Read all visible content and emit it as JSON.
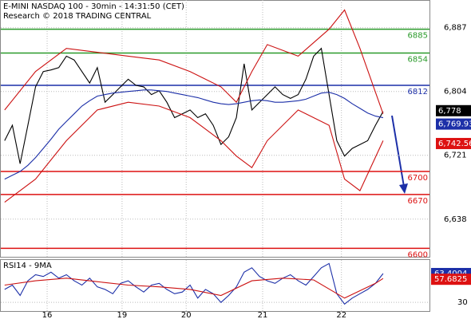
{
  "chart_data": {
    "type": "line",
    "title": "E-MINI NASDAQ 100 - 30min - 14:31:50 (CET)",
    "subtitle": "Research © 2018 TRADING CENTRAL",
    "x": [
      0,
      1,
      2,
      3,
      4,
      5,
      6,
      7,
      8,
      9,
      10,
      11,
      12,
      13,
      14,
      15,
      16,
      17,
      18,
      19,
      20,
      21,
      22,
      23,
      24,
      25,
      26,
      27,
      28,
      29,
      30,
      31,
      32,
      33,
      34,
      35,
      36,
      37,
      38,
      39,
      40,
      41,
      42,
      43,
      44,
      45,
      46,
      47,
      48,
      49
    ],
    "xlim": [
      -0.5,
      55
    ],
    "xticks": [
      {
        "value": 5.5,
        "label": "16"
      },
      {
        "value": 15.2,
        "label": "19"
      },
      {
        "value": 23.5,
        "label": "20"
      },
      {
        "value": 33.4,
        "label": "21"
      },
      {
        "value": 43.6,
        "label": "22"
      }
    ],
    "ylim": [
      6589,
      6923
    ],
    "yticks": [
      {
        "value": 6887,
        "label": "6,887"
      },
      {
        "value": 6804,
        "label": "6,804"
      },
      {
        "value": 6721,
        "label": "6,721"
      },
      {
        "value": 6638,
        "label": "6,638"
      }
    ],
    "series": [
      {
        "color": "#000000",
        "values": [
          6740,
          6760,
          6710,
          6760,
          6810,
          6830,
          6832,
          6835,
          6850,
          6845,
          6830,
          6815,
          6835,
          6790,
          6800,
          6810,
          6820,
          6812,
          6810,
          6800,
          6805,
          6790,
          6770,
          6775,
          6780,
          6770,
          6775,
          6760,
          6735,
          6745,
          6770,
          6840,
          6780,
          6790,
          6800,
          6810,
          6800,
          6795,
          6800,
          6820,
          6850,
          6860,
          6800,
          6740,
          6720,
          6730,
          6735,
          6740,
          6760,
          6778
        ]
      },
      {
        "color": "#1c2fa8",
        "values": [
          6690,
          6695,
          6700,
          6708,
          6718,
          6730,
          6742,
          6755,
          6765,
          6775,
          6785,
          6792,
          6798,
          6800,
          6802,
          6803,
          6804,
          6805,
          6806,
          6806,
          6805,
          6804,
          6802,
          6800,
          6798,
          6796,
          6793,
          6790,
          6788,
          6787,
          6788,
          6790,
          6792,
          6793,
          6792,
          6790,
          6790,
          6791,
          6792,
          6794,
          6798,
          6802,
          6803,
          6800,
          6795,
          6788,
          6782,
          6776,
          6772,
          6769.93
        ]
      },
      {
        "color": "#cc1111",
        "x": [
          0,
          4,
          8,
          12,
          16,
          20,
          24,
          28,
          30,
          32,
          34,
          38,
          42,
          44,
          46,
          49
        ],
        "values": [
          6780,
          6830,
          6860,
          6855,
          6850,
          6845,
          6830,
          6810,
          6790,
          6830,
          6865,
          6850,
          6885,
          6910,
          6860,
          6775
        ]
      },
      {
        "color": "#cc1111",
        "x": [
          0,
          4,
          8,
          12,
          16,
          20,
          24,
          28,
          30,
          32,
          34,
          38,
          42,
          44,
          46,
          49
        ],
        "values": [
          6660,
          6690,
          6740,
          6780,
          6790,
          6785,
          6770,
          6740,
          6720,
          6705,
          6740,
          6780,
          6760,
          6690,
          6675,
          6740
        ]
      }
    ],
    "levels": [
      {
        "value": 6885,
        "color": "#2a9a2a"
      },
      {
        "value": 6854,
        "color": "#2a9a2a"
      },
      {
        "value": 6812,
        "color": "#1c2fa8"
      },
      {
        "value": 6700,
        "color": "#dd1111"
      },
      {
        "value": 6670,
        "color": "#dd1111"
      },
      {
        "value": 6600,
        "color": "#dd1111"
      }
    ],
    "price_tags": [
      {
        "value": 6778,
        "label": "6,778",
        "color": "#000000"
      },
      {
        "value": 6769.93,
        "label": "6,769.93",
        "color": "#1c2fa8"
      },
      {
        "value": 6742.56,
        "label": "6,742.56",
        "color": "#dd1111"
      }
    ],
    "rsi": {
      "title": "RSI14 - 9MA",
      "ylim": [
        20,
        80
      ],
      "yticks": [
        30
      ],
      "series": [
        {
          "color": "#1c2fa8",
          "values": [
            45,
            50,
            38,
            55,
            62,
            60,
            65,
            58,
            62,
            55,
            50,
            58,
            48,
            45,
            40,
            52,
            55,
            48,
            42,
            50,
            52,
            45,
            40,
            42,
            50,
            35,
            45,
            40,
            30,
            38,
            48,
            65,
            70,
            60,
            55,
            52,
            58,
            62,
            55,
            50,
            60,
            70,
            75,
            40,
            28,
            35,
            40,
            45,
            52,
            63.4004
          ]
        },
        {
          "color": "#cc1111",
          "x": [
            0,
            4,
            8,
            12,
            16,
            20,
            24,
            28,
            32,
            36,
            40,
            44,
            48,
            49
          ],
          "values": [
            50,
            55,
            58,
            54,
            50,
            48,
            45,
            38,
            55,
            58,
            56,
            35,
            52,
            57.6825
          ]
        }
      ],
      "tags": [
        {
          "value": 63.4004,
          "color": "#1c2fa8"
        },
        {
          "value": 57.6825,
          "color": "#dd1111"
        }
      ]
    }
  }
}
